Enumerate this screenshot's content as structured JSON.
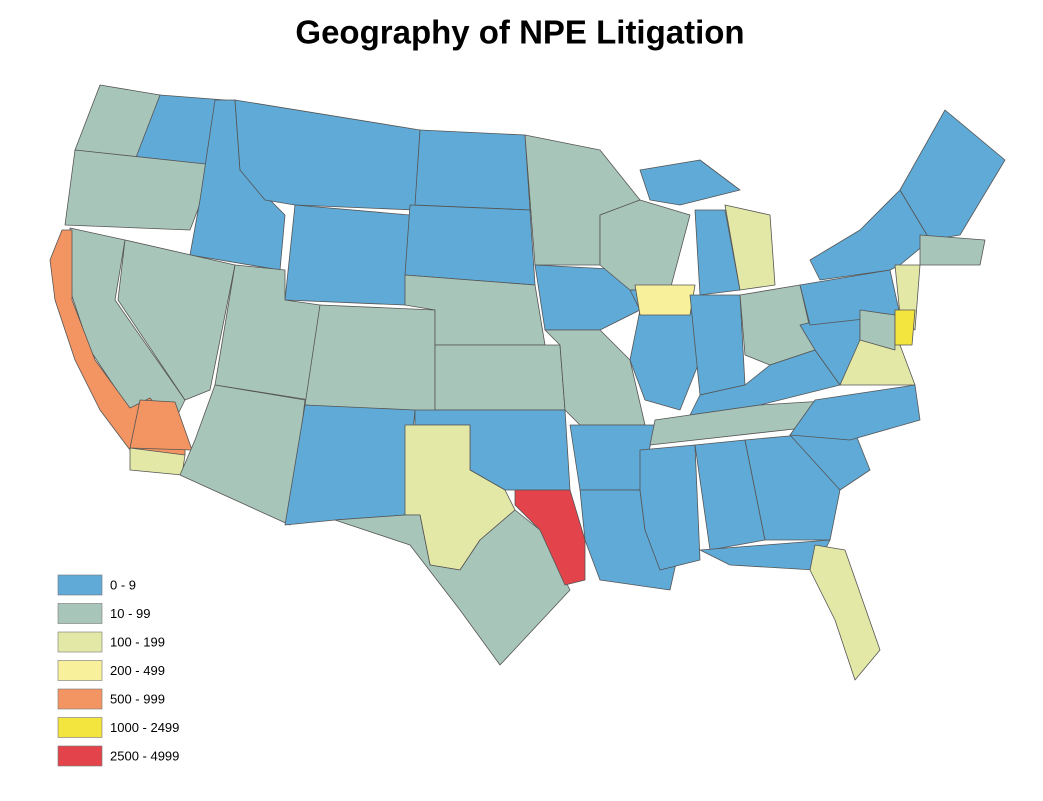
{
  "title": "Geography of NPE Litigation",
  "legend": [
    {
      "label": "0 - 9",
      "color": "#5faad6"
    },
    {
      "label": "10 - 99",
      "color": "#a8c5b9"
    },
    {
      "label": "100 - 199",
      "color": "#e3e8a6"
    },
    {
      "label": "200 - 499",
      "color": "#f9f09c"
    },
    {
      "label": "500 - 999",
      "color": "#f39562"
    },
    {
      "label": "1000 - 2499",
      "color": "#f3e43e"
    },
    {
      "label": "2500 - 4999",
      "color": "#e3434a"
    }
  ]
}
